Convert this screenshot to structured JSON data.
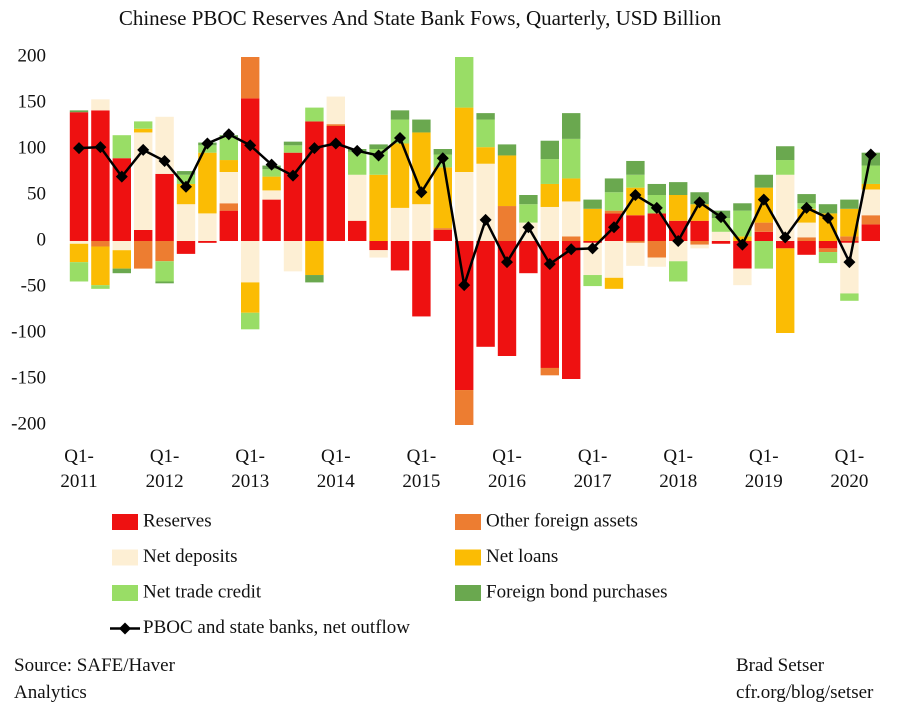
{
  "chart_data": {
    "type": "bar",
    "stacked": true,
    "title": "Chinese PBOC Reserves And State Bank Fows, Quarterly, USD Billion",
    "categories": [
      "Q1-2011",
      null,
      null,
      null,
      "Q1-2012",
      null,
      null,
      null,
      "Q1-2013",
      null,
      null,
      null,
      "Q1-2014",
      null,
      null,
      null,
      "Q1-2015",
      null,
      null,
      null,
      "Q1-2016",
      null,
      null,
      null,
      "Q1-2017",
      null,
      null,
      null,
      "Q1-2018",
      null,
      null,
      null,
      "Q1-2019",
      null,
      null,
      null,
      "Q1-2020",
      null
    ],
    "series": [
      {
        "name": "Reserves",
        "color": "#ee1111",
        "values": [
          140,
          142,
          90,
          12,
          73,
          -14,
          -2,
          33,
          155,
          45,
          96,
          130,
          125,
          22,
          -10,
          -32,
          -82,
          12,
          -162,
          -115,
          -125,
          -35,
          -138,
          -150,
          -2,
          30,
          28,
          30,
          22,
          22,
          -3,
          -30,
          10,
          -8,
          -15,
          -8,
          -2,
          18
        ]
      },
      {
        "name": "Other foreign assets",
        "color": "#ed7d31",
        "values": [
          0,
          -6,
          0,
          -30,
          -22,
          0,
          0,
          8,
          45,
          0,
          0,
          0,
          2,
          0,
          0,
          0,
          0,
          2,
          -38,
          0,
          38,
          0,
          -8,
          5,
          0,
          3,
          -2,
          -18,
          0,
          -4,
          0,
          0,
          10,
          0,
          4,
          -4,
          5,
          10
        ]
      },
      {
        "name": "Net deposits",
        "color": "#fdefd4",
        "values": [
          -3,
          12,
          -10,
          106,
          62,
          40,
          30,
          34,
          -45,
          10,
          -33,
          0,
          30,
          50,
          -8,
          36,
          40,
          0,
          75,
          84,
          0,
          20,
          37,
          38,
          -35,
          -40,
          -25,
          -10,
          -22,
          -4,
          10,
          -18,
          0,
          72,
          16,
          0,
          -55,
          28
        ]
      },
      {
        "name": "Net loans",
        "color": "#fbbc04",
        "values": [
          -20,
          -42,
          -20,
          4,
          0,
          22,
          66,
          13,
          -33,
          15,
          0,
          -37,
          0,
          0,
          72,
          70,
          78,
          66,
          70,
          18,
          55,
          0,
          25,
          25,
          35,
          -12,
          30,
          0,
          28,
          18,
          0,
          5,
          38,
          -92,
          15,
          30,
          30,
          6
        ]
      },
      {
        "name": "Net trade credit",
        "color": "#99dd66",
        "values": [
          -21,
          -4,
          25,
          8,
          -22,
          10,
          8,
          25,
          -18,
          8,
          8,
          15,
          0,
          25,
          28,
          26,
          0,
          14,
          55,
          30,
          0,
          20,
          27,
          43,
          -12,
          20,
          14,
          20,
          -22,
          0,
          15,
          28,
          -30,
          16,
          6,
          -12,
          -8,
          20
        ]
      },
      {
        "name": "Foreign bond purchases",
        "color": "#6aa84f",
        "values": [
          2,
          0,
          -5,
          0,
          -2,
          4,
          3,
          2,
          0,
          4,
          4,
          -8,
          0,
          3,
          5,
          10,
          14,
          6,
          0,
          7,
          12,
          10,
          20,
          28,
          10,
          15,
          15,
          12,
          14,
          13,
          8,
          8,
          14,
          15,
          10,
          10,
          10,
          14
        ]
      }
    ],
    "line": {
      "name": "PBOC and state banks, net outflow",
      "color": "#000000",
      "values": [
        101,
        102,
        70,
        99,
        87,
        59,
        106,
        116,
        104,
        83,
        71,
        101,
        106,
        98,
        93,
        112,
        53,
        90,
        -48,
        23,
        -23,
        15,
        -25,
        -9,
        -8,
        15,
        50,
        36,
        0,
        42,
        26,
        -4,
        45,
        4,
        36,
        25,
        -23,
        94
      ]
    },
    "ylim": [
      -200,
      200
    ],
    "yticks": [
      -200,
      -150,
      -100,
      -50,
      0,
      50,
      100,
      150,
      200
    ],
    "grid": false,
    "source": "Source: SAFE/Haver Analytics",
    "credit": [
      "Brad Setser",
      "cfr.org/blog/setser"
    ]
  }
}
